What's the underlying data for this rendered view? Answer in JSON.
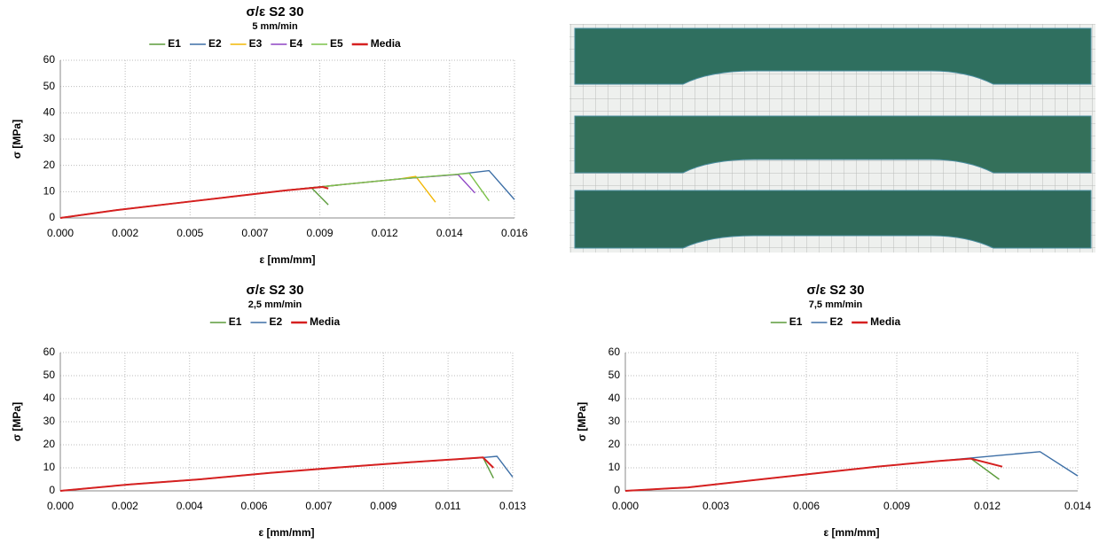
{
  "chart_data": [
    {
      "type": "line",
      "title": "σ/ε S2 30",
      "subtitle": "5 mm/min",
      "x_label": "ε [mm/mm]",
      "y_label": "σ [MPa]",
      "grid": true,
      "xlim": [
        0,
        0.0161
      ],
      "ylim": [
        0,
        60
      ],
      "xticks": [
        {
          "value": 0,
          "label": "0.000"
        },
        {
          "value": 0.0023,
          "label": "0.002"
        },
        {
          "value": 0.0046,
          "label": "0.005"
        },
        {
          "value": 0.0069,
          "label": "0.007"
        },
        {
          "value": 0.0092,
          "label": "0.009"
        },
        {
          "value": 0.0115,
          "label": "0.012"
        },
        {
          "value": 0.0138,
          "label": "0.014"
        },
        {
          "value": 0.0161,
          "label": "0.016"
        }
      ],
      "yticks": [
        0,
        10,
        20,
        30,
        40,
        50,
        60
      ],
      "series": [
        {
          "name": "E1",
          "color": "#5b9b3a",
          "x": [
            0,
            0.002,
            0.004,
            0.006,
            0.008,
            0.0089,
            0.0095
          ],
          "values": [
            0,
            3,
            5.5,
            8,
            10.5,
            11.5,
            5
          ]
        },
        {
          "name": "E2",
          "color": "#3d6fa6",
          "x": [
            0,
            0.002,
            0.004,
            0.006,
            0.008,
            0.01,
            0.012,
            0.014,
            0.0152,
            0.0161
          ],
          "values": [
            0,
            3,
            5.5,
            8,
            10.5,
            12.7,
            14.8,
            16.5,
            18,
            7
          ]
        },
        {
          "name": "E3",
          "color": "#f2b705",
          "x": [
            0,
            0.002,
            0.004,
            0.006,
            0.008,
            0.01,
            0.012,
            0.0126,
            0.0133
          ],
          "values": [
            0,
            3,
            5.5,
            8,
            10.5,
            12.7,
            14.8,
            15.8,
            6
          ]
        },
        {
          "name": "E4",
          "color": "#8e44c4",
          "x": [
            0,
            0.002,
            0.004,
            0.006,
            0.008,
            0.01,
            0.012,
            0.0141,
            0.0147
          ],
          "values": [
            0,
            3,
            5.5,
            8,
            10.5,
            12.7,
            14.8,
            16.5,
            9.5
          ]
        },
        {
          "name": "E5",
          "color": "#7cc24a",
          "x": [
            0,
            0.002,
            0.004,
            0.006,
            0.008,
            0.01,
            0.012,
            0.0145,
            0.0152
          ],
          "values": [
            0,
            3,
            5.5,
            8,
            10.5,
            12.7,
            14.8,
            17,
            6.5
          ]
        },
        {
          "name": "Media",
          "color": "#d62020",
          "x": [
            0,
            0.002,
            0.004,
            0.006,
            0.008,
            0.0093,
            0.0095
          ],
          "values": [
            0,
            3,
            5.5,
            8,
            10.5,
            11.8,
            11.2
          ]
        }
      ]
    },
    {
      "type": "line",
      "title": "σ/ε S2 30",
      "subtitle": "2,5 mm/min",
      "x_label": "ε [mm/mm]",
      "y_label": "σ [MPa]",
      "grid": true,
      "xlim": [
        0,
        0.01295
      ],
      "ylim": [
        0,
        60
      ],
      "xticks": [
        {
          "value": 0,
          "label": "0.000"
        },
        {
          "value": 0.00185,
          "label": "0.002"
        },
        {
          "value": 0.0037,
          "label": "0.004"
        },
        {
          "value": 0.00555,
          "label": "0.006"
        },
        {
          "value": 0.0074,
          "label": "0.007"
        },
        {
          "value": 0.00925,
          "label": "0.009"
        },
        {
          "value": 0.0111,
          "label": "0.011"
        },
        {
          "value": 0.01295,
          "label": "0.013"
        }
      ],
      "yticks": [
        0,
        10,
        20,
        30,
        40,
        50,
        60
      ],
      "series": [
        {
          "name": "E1",
          "color": "#5b9b3a",
          "x": [
            0,
            0.002,
            0.004,
            0.006,
            0.008,
            0.01,
            0.0121,
            0.0124
          ],
          "values": [
            0,
            2.8,
            5,
            7.8,
            10.2,
            12.4,
            14.5,
            5.5
          ]
        },
        {
          "name": "E2",
          "color": "#3d6fa6",
          "x": [
            0,
            0.002,
            0.004,
            0.006,
            0.008,
            0.01,
            0.012,
            0.0125,
            0.01295
          ],
          "values": [
            0,
            2.8,
            5,
            7.8,
            10.2,
            12.4,
            14.3,
            15,
            6
          ]
        },
        {
          "name": "Media",
          "color": "#d62020",
          "x": [
            0,
            0.002,
            0.004,
            0.006,
            0.008,
            0.01,
            0.0121,
            0.0124
          ],
          "values": [
            0,
            2.8,
            5,
            7.8,
            10.2,
            12.4,
            14.5,
            10
          ]
        }
      ]
    },
    {
      "type": "line",
      "title": "σ/ε S2 30",
      "subtitle": "7,5 mm/min",
      "x_label": "ε [mm/mm]",
      "y_label": "σ [MPa]",
      "grid": true,
      "xlim": [
        0,
        0.0144
      ],
      "ylim": [
        0,
        60
      ],
      "xticks": [
        {
          "value": 0,
          "label": "0.000"
        },
        {
          "value": 0.00288,
          "label": "0.003"
        },
        {
          "value": 0.00576,
          "label": "0.006"
        },
        {
          "value": 0.00864,
          "label": "0.009"
        },
        {
          "value": 0.01152,
          "label": "0.012"
        },
        {
          "value": 0.0144,
          "label": "0.014"
        }
      ],
      "yticks": [
        0,
        10,
        20,
        30,
        40,
        50,
        60
      ],
      "series": [
        {
          "name": "E1",
          "color": "#5b9b3a",
          "x": [
            0,
            0.002,
            0.004,
            0.006,
            0.008,
            0.01,
            0.011,
            0.0119
          ],
          "values": [
            0,
            1.5,
            4.5,
            7.5,
            10.5,
            13,
            14,
            5
          ]
        },
        {
          "name": "E2",
          "color": "#3d6fa6",
          "x": [
            0,
            0.002,
            0.004,
            0.006,
            0.008,
            0.01,
            0.012,
            0.0132,
            0.0144
          ],
          "values": [
            0,
            1.5,
            4.5,
            7.5,
            10.5,
            13,
            15.5,
            17,
            6.5
          ]
        },
        {
          "name": "Media",
          "color": "#d62020",
          "x": [
            0,
            0.002,
            0.004,
            0.006,
            0.008,
            0.01,
            0.011,
            0.012
          ],
          "values": [
            0,
            1.5,
            4.5,
            7.5,
            10.5,
            13,
            14,
            10.5
          ]
        }
      ]
    }
  ]
}
